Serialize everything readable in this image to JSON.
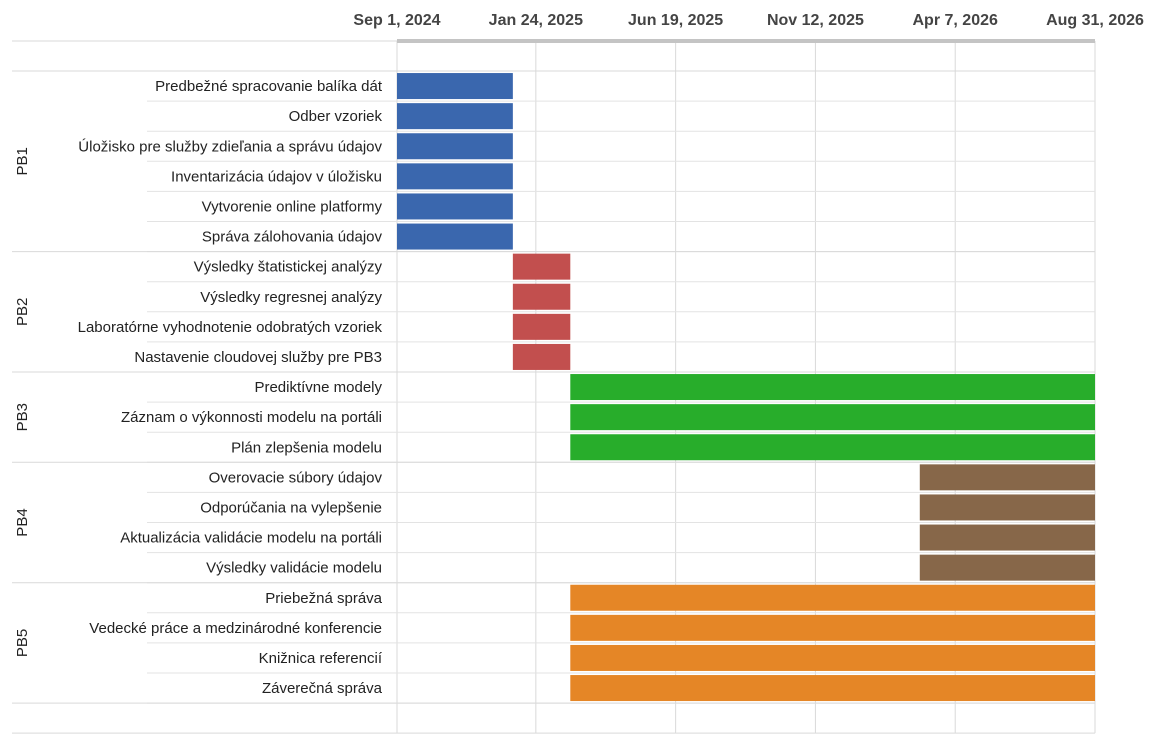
{
  "chart_data": {
    "type": "gantt",
    "x_axis": {
      "scale": "date",
      "range": [
        "2024-09-01",
        "2026-08-31"
      ],
      "ticks": [
        "Sep 1, 2024",
        "Jan 24, 2025",
        "Jun 19, 2025",
        "Nov 12, 2025",
        "Apr 7, 2026",
        "Aug 31, 2026"
      ],
      "tick_dates": [
        "2024-09-01",
        "2025-01-24",
        "2025-06-19",
        "2025-11-12",
        "2026-04-07",
        "2026-08-31"
      ],
      "position": "top"
    },
    "grid": true,
    "groups": [
      {
        "name": "PB1",
        "color": "#3a67ae",
        "tasks": [
          {
            "label": "Predbežné spracovanie balíka dát",
            "start": "2024-09-01",
            "end": "2024-12-31"
          },
          {
            "label": "Odber vzoriek",
            "start": "2024-09-01",
            "end": "2024-12-31"
          },
          {
            "label": "Úložisko pre služby zdieľania a správu údajov",
            "start": "2024-09-01",
            "end": "2024-12-31"
          },
          {
            "label": "Inventarizácia údajov v úložisku",
            "start": "2024-09-01",
            "end": "2024-12-31"
          },
          {
            "label": "Vytvorenie online platformy",
            "start": "2024-09-01",
            "end": "2024-12-31"
          },
          {
            "label": "Správa zálohovania údajov",
            "start": "2024-09-01",
            "end": "2024-12-31"
          }
        ]
      },
      {
        "name": "PB2",
        "color": "#c24f4e",
        "tasks": [
          {
            "label": "Výsledky štatistickej analýzy",
            "start": "2024-12-31",
            "end": "2025-03-01"
          },
          {
            "label": "Výsledky regresnej analýzy",
            "start": "2024-12-31",
            "end": "2025-03-01"
          },
          {
            "label": "Laboratórne vyhodnotenie odobratých vzoriek",
            "start": "2024-12-31",
            "end": "2025-03-01"
          },
          {
            "label": "Nastavenie cloudovej služby pre PB3",
            "start": "2024-12-31",
            "end": "2025-03-01"
          }
        ]
      },
      {
        "name": "PB3",
        "color": "#28ad2b",
        "tasks": [
          {
            "label": "Prediktívne modely",
            "start": "2025-03-01",
            "end": "2026-08-31"
          },
          {
            "label": "Záznam o výkonnosti modelu na portáli",
            "start": "2025-03-01",
            "end": "2026-08-31"
          },
          {
            "label": "Plán zlepšenia modelu",
            "start": "2025-03-01",
            "end": "2026-08-31"
          }
        ]
      },
      {
        "name": "PB4",
        "color": "#876749",
        "tasks": [
          {
            "label": "Overovacie súbory údajov",
            "start": "2026-03-01",
            "end": "2026-08-31"
          },
          {
            "label": "Odporúčania na vylepšenie",
            "start": "2026-03-01",
            "end": "2026-08-31"
          },
          {
            "label": "Aktualizácia validácie modelu na portáli",
            "start": "2026-03-01",
            "end": "2026-08-31"
          },
          {
            "label": "Výsledky validácie modelu",
            "start": "2026-03-01",
            "end": "2026-08-31"
          }
        ]
      },
      {
        "name": "PB5",
        "color": "#e58626",
        "tasks": [
          {
            "label": "Priebežná správa",
            "start": "2025-03-01",
            "end": "2026-08-31"
          },
          {
            "label": "Vedecké práce a medzinárodné konferencie",
            "start": "2025-03-01",
            "end": "2026-08-31"
          },
          {
            "label": "Knižnica referencií",
            "start": "2025-03-01",
            "end": "2026-08-31"
          },
          {
            "label": "Záverečná správa",
            "start": "2025-03-01",
            "end": "2026-08-31"
          }
        ]
      }
    ]
  }
}
